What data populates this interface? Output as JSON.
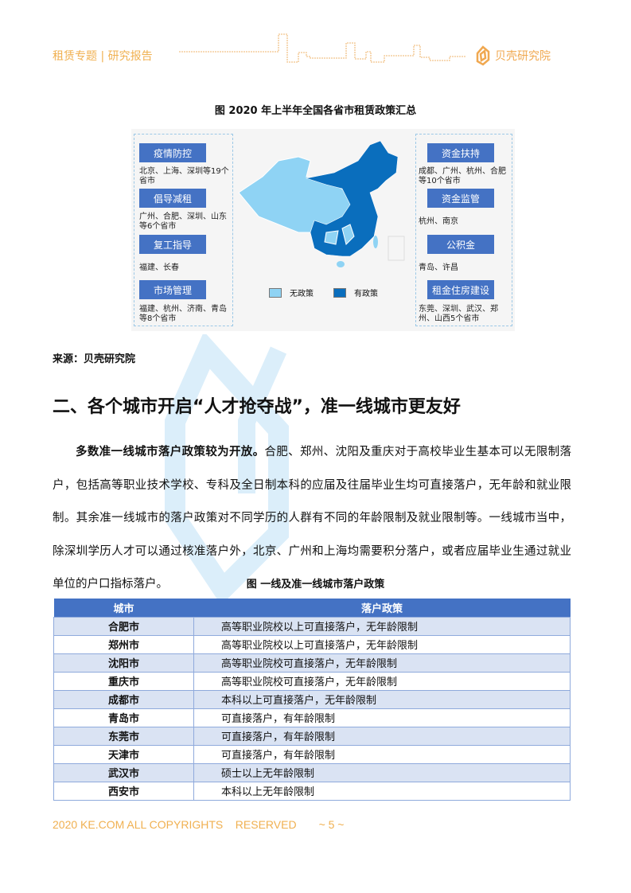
{
  "header": {
    "left": "租赁专题 | 研究报告",
    "brand": "贝壳研究院"
  },
  "figure1": {
    "title": "图  2020 年上半年全国各省市租赁政策汇总",
    "left": [
      {
        "label": "疫情防控",
        "text": "北京、上海、深圳等19个省市"
      },
      {
        "label": "倡导减租",
        "text": "广州、合肥、深圳、山东等6个省市"
      },
      {
        "label": "复工指导",
        "text": "福建、长春"
      },
      {
        "label": "市场管理",
        "text": "福建、杭州、济南、青岛等8个省市"
      }
    ],
    "right": [
      {
        "label": "资金扶持",
        "text": "成都、广州、杭州、合肥等10个省市"
      },
      {
        "label": "资金监管",
        "text": "杭州、南京"
      },
      {
        "label": "公积金",
        "text": "青岛、许昌"
      },
      {
        "label": "租金住房建设",
        "text": "东莞、深圳、武汉、郑州、山西5个省市"
      }
    ],
    "legend": [
      {
        "label": "无政策",
        "color": "#8fd3f4"
      },
      {
        "label": "有政策",
        "color": "#0a6ebd"
      }
    ]
  },
  "source": "来源：贝壳研究院",
  "section_title": "二、各个城市开启“人才抢夺战”，准一线城市更友好",
  "paragraph": {
    "lead": "多数准一线城市落户政策较为开放。",
    "body": "合肥、郑州、沈阳及重庆对于高校毕业生基本可以无限制落户，包括高等职业技术学校、专科及全日制本科的应届及往届毕业生均可直接落户，无年龄和就业限制。其余准一线城市的落户政策对不同学历的人群有不同的年龄限制及就业限制等。一线城市当中，除深圳学历人才可以通过核准落户外，北京、广州和上海均需要积分落户，或者应届毕业生通过就业单位的户口指标落户。"
  },
  "table": {
    "title": "图  一线及准一线城市落户政策",
    "headers": [
      "城市",
      "落户政策"
    ],
    "rows": [
      [
        "合肥市",
        "高等职业院校以上可直接落户，无年龄限制"
      ],
      [
        "郑州市",
        "高等职业院校以上可直接落户，无年龄限制"
      ],
      [
        "沈阳市",
        "高等职业院校可直接落户，无年龄限制"
      ],
      [
        "重庆市",
        "高等职业院校可直接落户，无年龄限制"
      ],
      [
        "成都市",
        "本科以上可直接落户，无年龄限制"
      ],
      [
        "青岛市",
        "可直接落户，有年龄限制"
      ],
      [
        "东莞市",
        "可直接落户，有年龄限制"
      ],
      [
        "天津市",
        "可直接落户，有年龄限制"
      ],
      [
        "武汉市",
        "硕士以上无年龄限制"
      ],
      [
        "西安市",
        "本科以上无年龄限制"
      ]
    ]
  },
  "footer": {
    "copyright": "2020 KE.COM ALL COPYRIGHTS    RESERVED",
    "page": "~ 5 ~"
  },
  "watermark": "贝壳研究院"
}
